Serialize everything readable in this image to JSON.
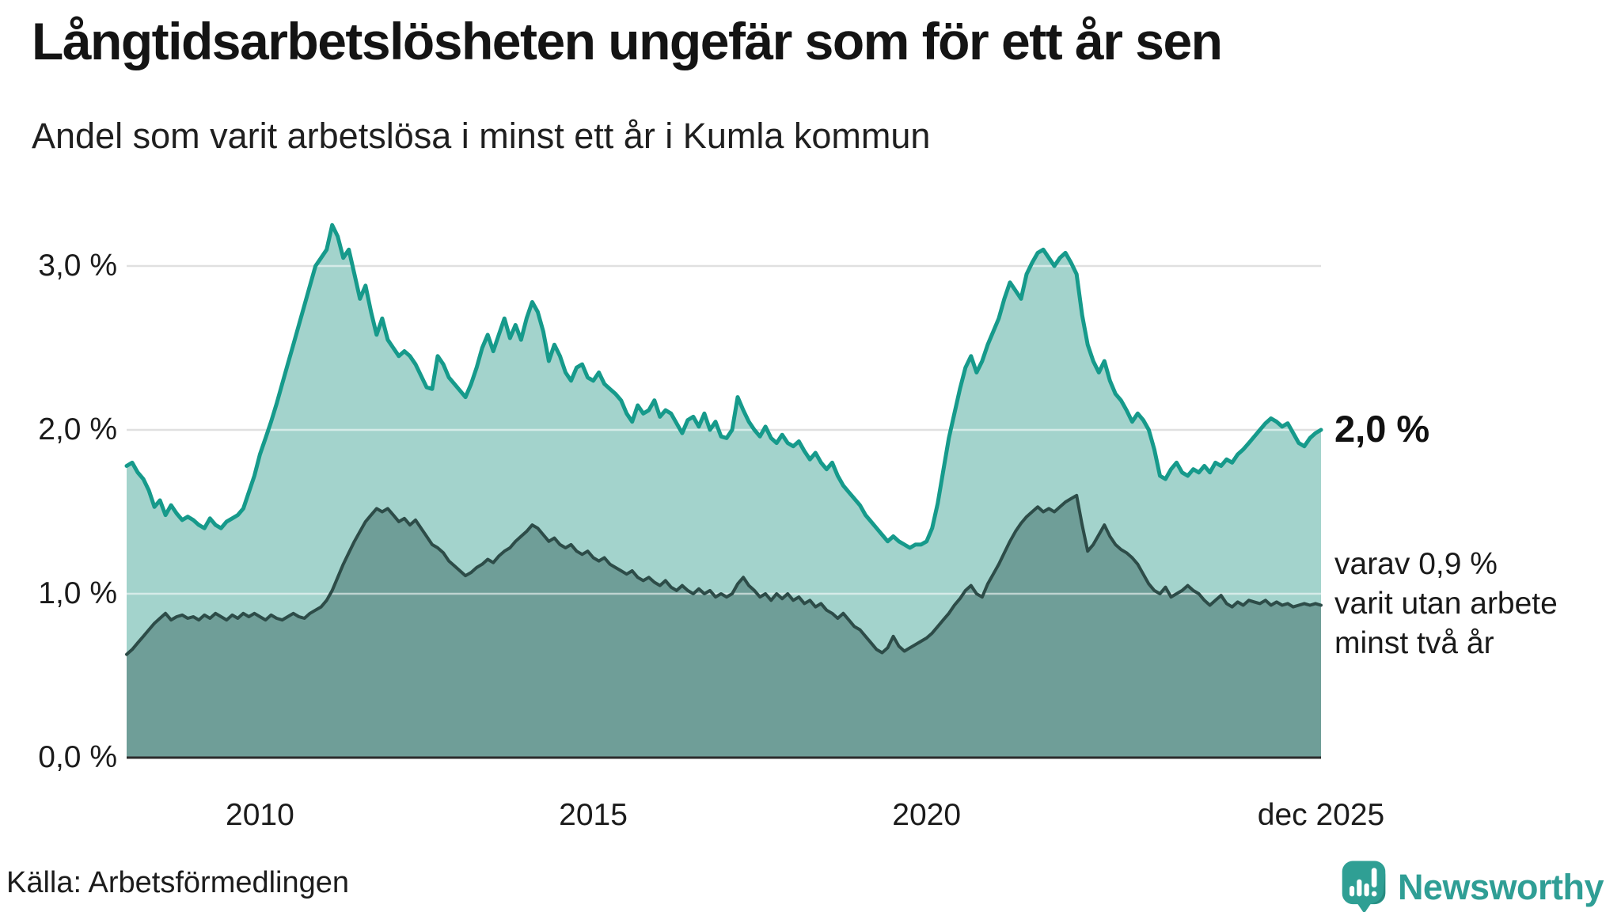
{
  "header": {
    "title": "Långtidsarbetslösheten ungefär som för ett år sen",
    "subtitle": "Andel som varit arbetslösa i minst ett år i Kumla kommun"
  },
  "annotations": {
    "total_end_value": "2,0 %",
    "subset_note_lines": [
      "varav 0,9 %",
      "varit utan arbete",
      "minst två år"
    ]
  },
  "source_label": "Källa: Arbetsförmedlingen",
  "branding": {
    "name": "Newsworthy",
    "logo_icon": "newsworthy-bar-chart-bubble-icon"
  },
  "colors": {
    "total_line": "#169a8b",
    "total_fill": "#a3d3cc",
    "subset_line": "#2d4c48",
    "subset_fill": "#6f9e98",
    "grid": "#e0e0e0",
    "grid_overlay": "rgba(255,255,255,0.55)",
    "baseline": "#2b2b2b",
    "brand_teal": "#2f9e95",
    "text": "#1a1a1a"
  },
  "chart_data": {
    "type": "area",
    "title": "Långtidsarbetslösheten ungefär som för ett år sen",
    "subtitle": "Andel som varit arbetslösa i minst ett år i Kumla kommun",
    "unit": "%",
    "frequency": "monthly",
    "x_start": "2008-01",
    "x_end": "2025-12",
    "xlabel": "",
    "ylabel": "",
    "ylim": [
      0,
      3.32
    ],
    "grid": true,
    "legend": "none",
    "x_ticks": [
      {
        "label": "2010",
        "month_index": 24
      },
      {
        "label": "2015",
        "month_index": 84
      },
      {
        "label": "2020",
        "month_index": 144
      },
      {
        "label": "dec 2025",
        "month_index": 215
      }
    ],
    "y_ticks": [
      {
        "label": "0,0 %",
        "value": 0
      },
      {
        "label": "1,0 %",
        "value": 1
      },
      {
        "label": "2,0 %",
        "value": 2
      },
      {
        "label": "3,0 %",
        "value": 3
      }
    ],
    "series": [
      {
        "name": "Arbetslösa minst ett år",
        "end_label": "2,0 %",
        "end_value": 2.0,
        "color": "#169a8b",
        "fill": "#a3d3cc",
        "values": [
          1.78,
          1.8,
          1.74,
          1.7,
          1.63,
          1.53,
          1.57,
          1.48,
          1.54,
          1.49,
          1.45,
          1.47,
          1.45,
          1.42,
          1.4,
          1.46,
          1.42,
          1.4,
          1.44,
          1.46,
          1.48,
          1.52,
          1.62,
          1.72,
          1.85,
          1.95,
          2.05,
          2.16,
          2.28,
          2.4,
          2.52,
          2.64,
          2.76,
          2.88,
          3.0,
          3.05,
          3.1,
          3.25,
          3.18,
          3.05,
          3.1,
          2.95,
          2.8,
          2.88,
          2.72,
          2.58,
          2.68,
          2.55,
          2.5,
          2.45,
          2.48,
          2.45,
          2.4,
          2.33,
          2.26,
          2.25,
          2.45,
          2.4,
          2.32,
          2.28,
          2.24,
          2.2,
          2.28,
          2.38,
          2.5,
          2.58,
          2.48,
          2.58,
          2.68,
          2.56,
          2.64,
          2.55,
          2.68,
          2.78,
          2.72,
          2.6,
          2.42,
          2.52,
          2.45,
          2.35,
          2.3,
          2.38,
          2.4,
          2.32,
          2.3,
          2.35,
          2.28,
          2.25,
          2.22,
          2.18,
          2.1,
          2.05,
          2.15,
          2.1,
          2.12,
          2.18,
          2.08,
          2.12,
          2.1,
          2.04,
          1.98,
          2.06,
          2.08,
          2.02,
          2.1,
          2.0,
          2.05,
          1.96,
          1.95,
          2.0,
          2.2,
          2.12,
          2.05,
          2.0,
          1.96,
          2.02,
          1.95,
          1.92,
          1.97,
          1.92,
          1.9,
          1.93,
          1.87,
          1.82,
          1.86,
          1.8,
          1.76,
          1.8,
          1.72,
          1.66,
          1.62,
          1.58,
          1.54,
          1.48,
          1.44,
          1.4,
          1.36,
          1.32,
          1.35,
          1.32,
          1.3,
          1.28,
          1.3,
          1.3,
          1.32,
          1.4,
          1.55,
          1.75,
          1.95,
          2.1,
          2.25,
          2.38,
          2.45,
          2.35,
          2.42,
          2.52,
          2.6,
          2.68,
          2.8,
          2.9,
          2.85,
          2.8,
          2.95,
          3.02,
          3.08,
          3.1,
          3.05,
          3.0,
          3.05,
          3.08,
          3.02,
          2.95,
          2.7,
          2.52,
          2.42,
          2.35,
          2.42,
          2.3,
          2.22,
          2.18,
          2.12,
          2.05,
          2.1,
          2.06,
          2.0,
          1.88,
          1.72,
          1.7,
          1.76,
          1.8,
          1.74,
          1.72,
          1.76,
          1.74,
          1.78,
          1.74,
          1.8,
          1.78,
          1.82,
          1.8,
          1.85,
          1.88,
          1.92,
          1.96,
          2.0,
          2.04,
          2.07,
          2.05,
          2.02,
          2.04,
          1.98,
          1.92,
          1.9,
          1.95,
          1.98,
          2.0
        ]
      },
      {
        "name": "Varav utan arbete minst två år",
        "end_label": "varav 0,9 % varit utan arbete minst två år",
        "end_value": 0.9,
        "color": "#2d4c48",
        "fill": "#6f9e98",
        "values": [
          0.63,
          0.66,
          0.7,
          0.74,
          0.78,
          0.82,
          0.85,
          0.88,
          0.84,
          0.86,
          0.87,
          0.85,
          0.86,
          0.84,
          0.87,
          0.85,
          0.88,
          0.86,
          0.84,
          0.87,
          0.85,
          0.88,
          0.86,
          0.88,
          0.86,
          0.84,
          0.87,
          0.85,
          0.84,
          0.86,
          0.88,
          0.86,
          0.85,
          0.88,
          0.9,
          0.92,
          0.96,
          1.02,
          1.1,
          1.18,
          1.25,
          1.32,
          1.38,
          1.44,
          1.48,
          1.52,
          1.5,
          1.52,
          1.48,
          1.44,
          1.46,
          1.42,
          1.45,
          1.4,
          1.35,
          1.3,
          1.28,
          1.25,
          1.2,
          1.17,
          1.14,
          1.11,
          1.13,
          1.16,
          1.18,
          1.21,
          1.19,
          1.23,
          1.26,
          1.28,
          1.32,
          1.35,
          1.38,
          1.42,
          1.4,
          1.36,
          1.32,
          1.34,
          1.3,
          1.28,
          1.3,
          1.26,
          1.24,
          1.26,
          1.22,
          1.2,
          1.22,
          1.18,
          1.16,
          1.14,
          1.12,
          1.14,
          1.1,
          1.08,
          1.1,
          1.07,
          1.05,
          1.08,
          1.04,
          1.02,
          1.05,
          1.02,
          1.0,
          1.03,
          1.0,
          1.02,
          0.98,
          1.0,
          0.98,
          1.0,
          1.06,
          1.1,
          1.05,
          1.02,
          0.98,
          1.0,
          0.96,
          1.0,
          0.97,
          1.0,
          0.96,
          0.98,
          0.94,
          0.96,
          0.92,
          0.94,
          0.9,
          0.88,
          0.85,
          0.88,
          0.84,
          0.8,
          0.78,
          0.74,
          0.7,
          0.66,
          0.64,
          0.67,
          0.74,
          0.68,
          0.65,
          0.67,
          0.69,
          0.71,
          0.73,
          0.76,
          0.8,
          0.84,
          0.88,
          0.93,
          0.97,
          1.02,
          1.05,
          1.0,
          0.98,
          1.06,
          1.12,
          1.18,
          1.25,
          1.32,
          1.38,
          1.43,
          1.47,
          1.5,
          1.53,
          1.5,
          1.52,
          1.5,
          1.53,
          1.56,
          1.58,
          1.6,
          1.42,
          1.26,
          1.3,
          1.36,
          1.42,
          1.35,
          1.3,
          1.27,
          1.25,
          1.22,
          1.18,
          1.12,
          1.06,
          1.02,
          1.0,
          1.04,
          0.98,
          1.0,
          1.02,
          1.05,
          1.02,
          1.0,
          0.96,
          0.93,
          0.96,
          0.99,
          0.94,
          0.92,
          0.95,
          0.93,
          0.96,
          0.95,
          0.94,
          0.96,
          0.93,
          0.95,
          0.93,
          0.94,
          0.92,
          0.93,
          0.94,
          0.93,
          0.94,
          0.93
        ]
      }
    ]
  }
}
